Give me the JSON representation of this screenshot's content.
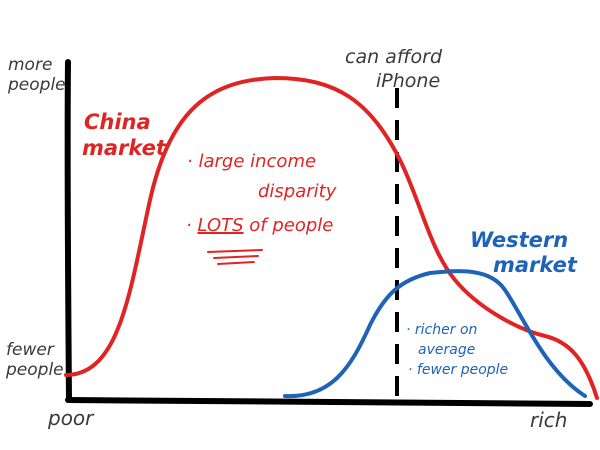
{
  "axes": {
    "y_top": "more\npeople",
    "y_bottom": "fewer\npeople",
    "x_left": "poor",
    "x_right": "rich"
  },
  "threshold": {
    "label_line1": "can afford",
    "label_line2": "iPhone"
  },
  "china": {
    "title_line1": "China",
    "title_line2": "market",
    "note1_line1": "large income",
    "note1_line2": "disparity",
    "note2_em": "LOTS",
    "note2_rest": "of people",
    "color": "#e02424"
  },
  "western": {
    "title_line1": "Western",
    "title_line2": "market",
    "note1_line1": "richer on",
    "note1_line2": "average",
    "note2": "fewer people",
    "color": "#1d63b8"
  },
  "bullet": "·"
}
